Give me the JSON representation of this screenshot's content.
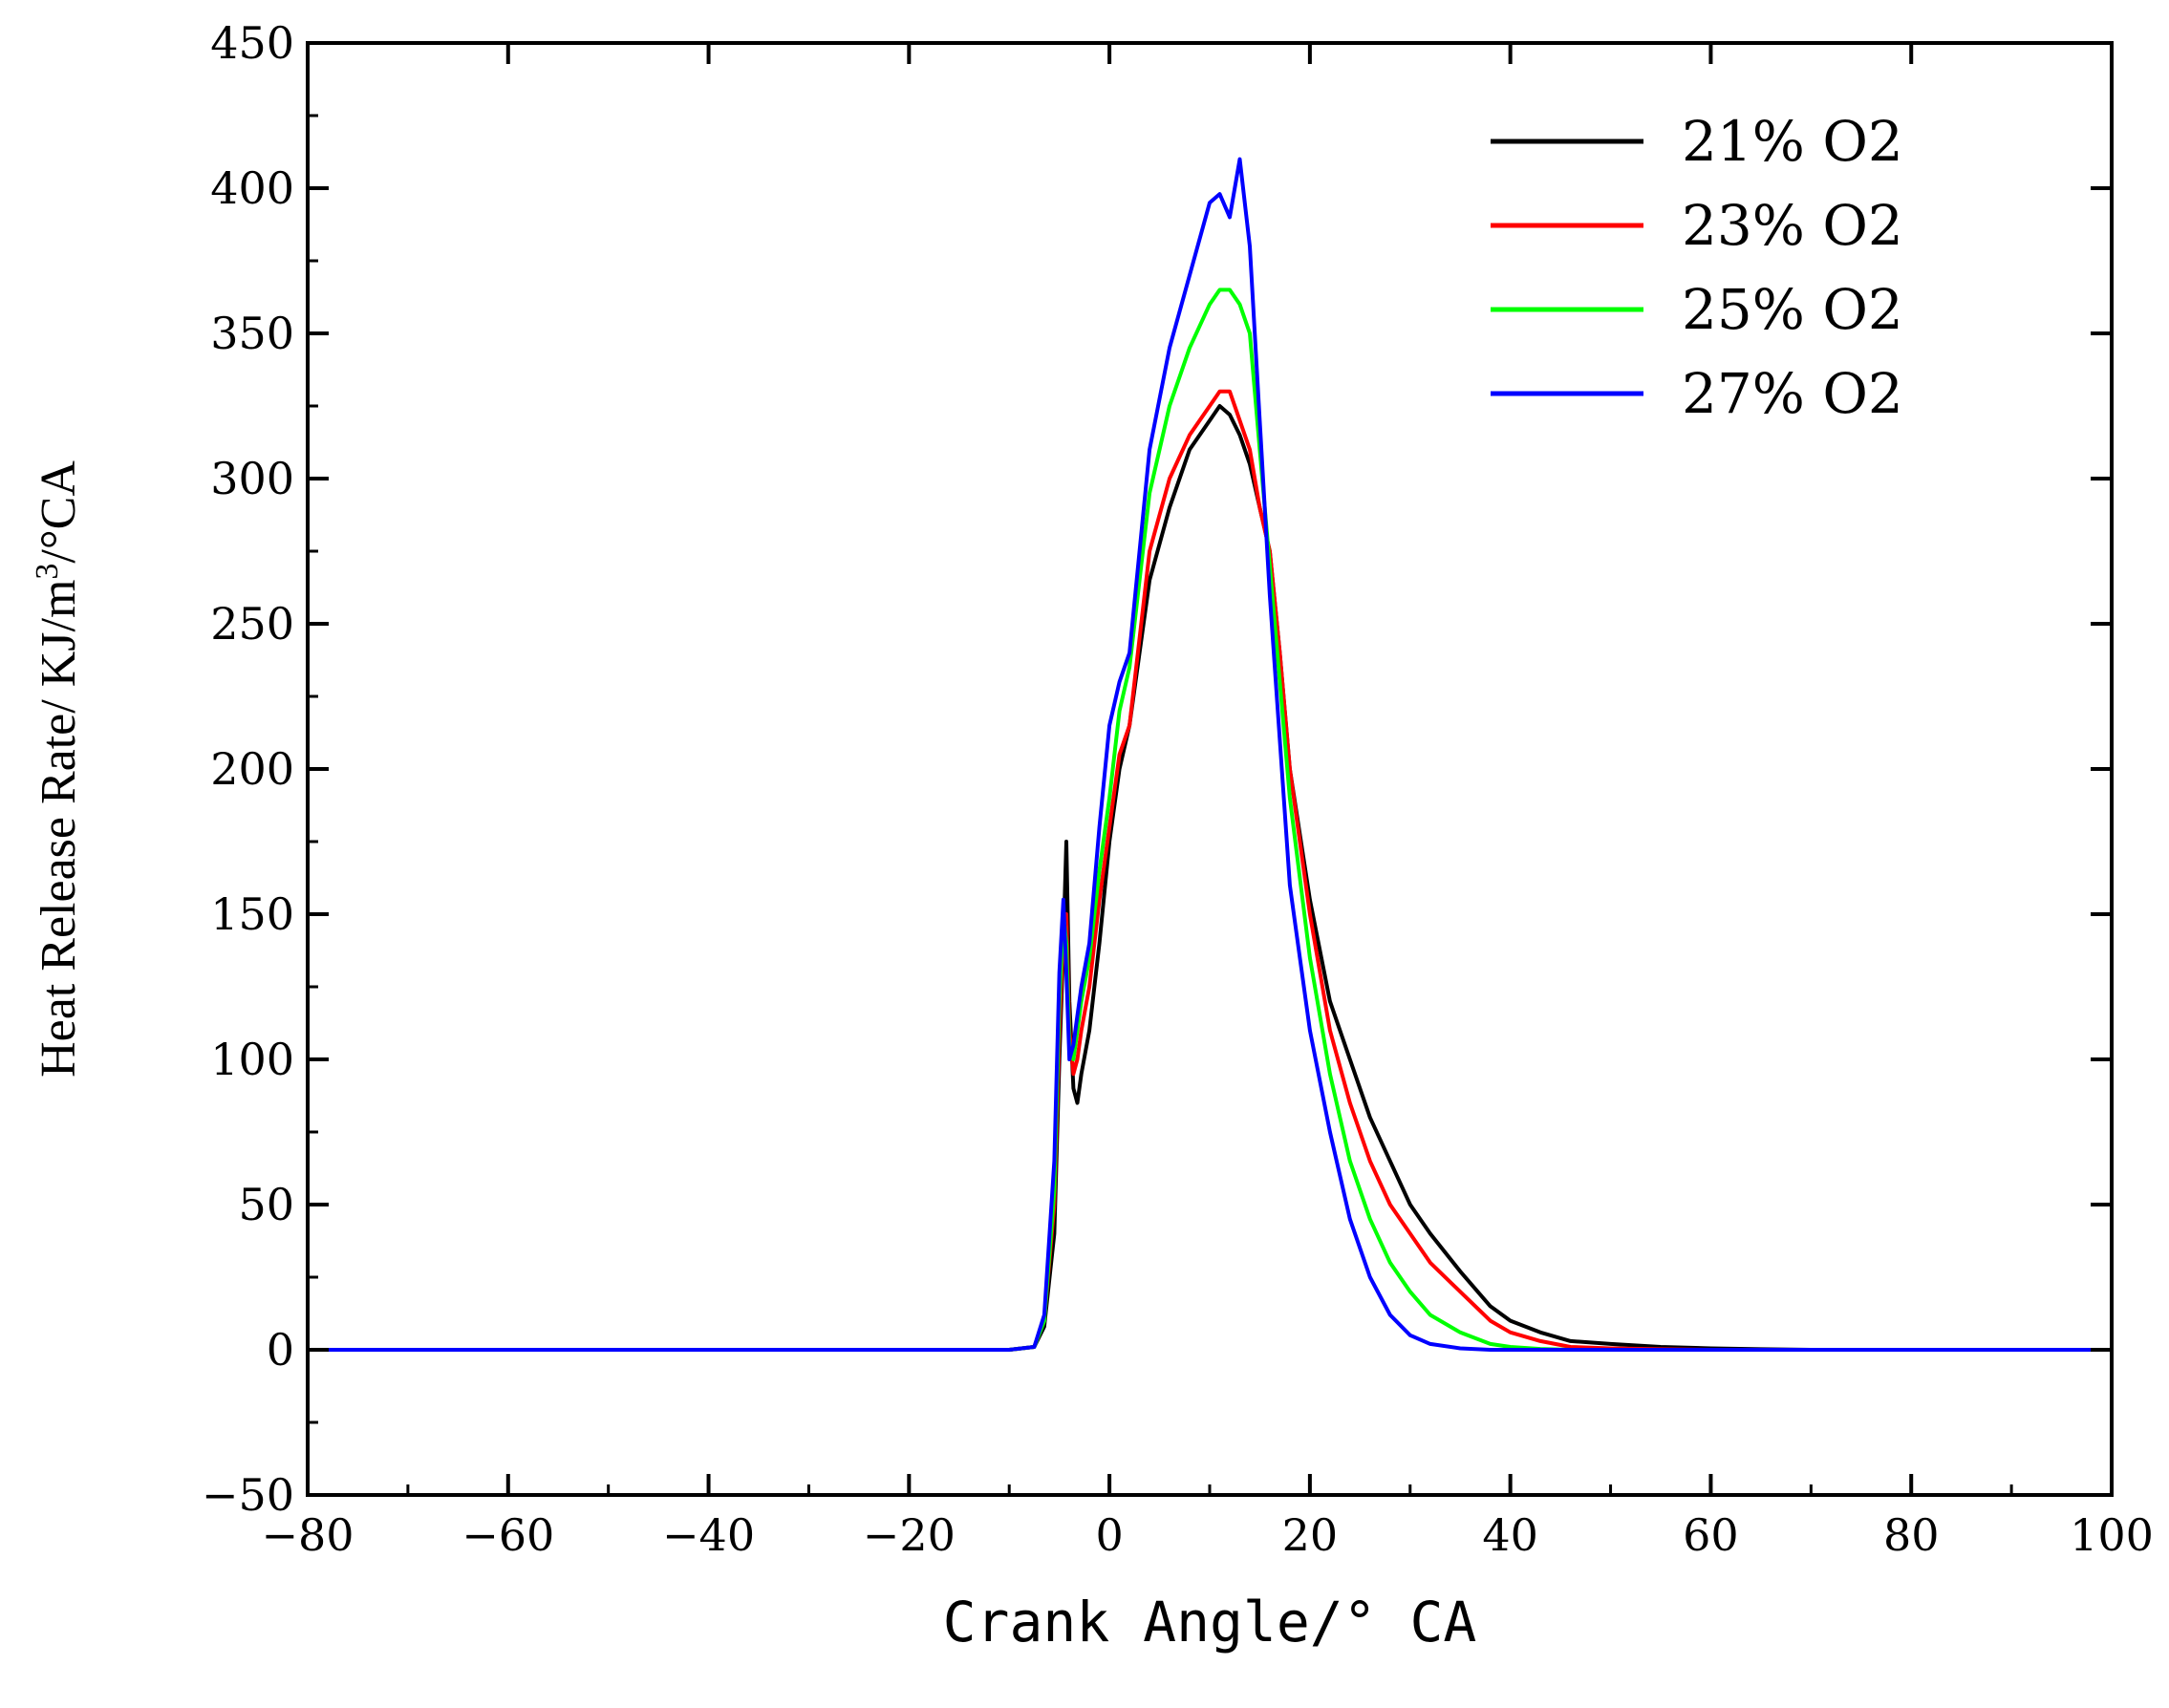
{
  "chart_data": {
    "type": "line",
    "title": "",
    "xlabel": "Crank Angle/° CA",
    "ylabel_main": "Heat Release Rate/ KJ/m",
    "ylabel_sup": "3",
    "ylabel_tail": "/°CA",
    "xlim": [
      -80,
      100
    ],
    "ylim": [
      -50,
      450
    ],
    "xticks": [
      -80,
      -60,
      -40,
      -20,
      0,
      20,
      40,
      60,
      80,
      100
    ],
    "xtick_labels": [
      "−80",
      "−60",
      "−40",
      "−20",
      "0",
      "20",
      "40",
      "60",
      "80",
      "100"
    ],
    "yticks": [
      -50,
      0,
      50,
      100,
      150,
      200,
      250,
      300,
      350,
      400,
      450
    ],
    "ytick_labels": [
      "−50",
      "0",
      "50",
      "100",
      "150",
      "200",
      "250",
      "300",
      "350",
      "400",
      "450"
    ],
    "grid": false,
    "legend_position": "top-right",
    "series": [
      {
        "name": "21% O2",
        "color": "#000000",
        "x": [
          -78,
          -10,
          -7.5,
          -6.5,
          -5.5,
          -5,
          -4.6,
          -4.3,
          -4.0,
          -3.6,
          -3.2,
          -2.8,
          -2,
          -1,
          0,
          1,
          2,
          3,
          4,
          6,
          8,
          10,
          11,
          12,
          13,
          14,
          15,
          16,
          17,
          18,
          20,
          22,
          24,
          26,
          28,
          30,
          32,
          35,
          38,
          40,
          43,
          46,
          50,
          55,
          60,
          65,
          70,
          80,
          100
        ],
        "y": [
          0,
          0,
          1,
          8,
          40,
          100,
          140,
          175,
          120,
          90,
          85,
          95,
          110,
          140,
          175,
          200,
          215,
          240,
          265,
          290,
          310,
          320,
          325,
          322,
          315,
          305,
          290,
          275,
          240,
          200,
          155,
          120,
          100,
          80,
          65,
          50,
          40,
          27,
          15,
          10,
          6,
          3,
          2,
          1,
          0.5,
          0.2,
          0,
          0,
          0
        ]
      },
      {
        "name": "23% O2",
        "color": "#ff0000",
        "x": [
          -78,
          -10,
          -7.5,
          -6.5,
          -5.5,
          -5,
          -4.6,
          -4.3,
          -4.0,
          -3.6,
          -3.2,
          -2.8,
          -2,
          -1,
          0,
          1,
          2,
          3,
          4,
          6,
          8,
          10,
          11,
          12,
          13,
          14,
          15,
          16,
          17,
          18,
          20,
          22,
          24,
          26,
          28,
          30,
          32,
          35,
          38,
          40,
          43,
          46,
          50,
          55,
          60,
          65,
          70,
          80,
          100
        ],
        "y": [
          0,
          0,
          1,
          10,
          50,
          110,
          145,
          150,
          110,
          95,
          100,
          110,
          125,
          155,
          180,
          205,
          215,
          245,
          275,
          300,
          315,
          325,
          330,
          330,
          320,
          310,
          290,
          275,
          240,
          200,
          150,
          110,
          85,
          65,
          50,
          40,
          30,
          20,
          10,
          6,
          3,
          1,
          0.5,
          0.2,
          0,
          0,
          0,
          0,
          0
        ]
      },
      {
        "name": "25% O2",
        "color": "#00ff00",
        "x": [
          -78,
          -10,
          -7.5,
          -6.5,
          -5.5,
          -5,
          -4.6,
          -4.3,
          -4.0,
          -3.6,
          -3.2,
          -2.8,
          -2,
          -1,
          0,
          1,
          2,
          3,
          4,
          6,
          8,
          10,
          11,
          12,
          13,
          14,
          15,
          16,
          17,
          18,
          20,
          22,
          24,
          26,
          28,
          30,
          32,
          35,
          38,
          40,
          43,
          46,
          50,
          55,
          60,
          65,
          70,
          80,
          100
        ],
        "y": [
          0,
          0,
          1,
          10,
          55,
          120,
          150,
          140,
          105,
          100,
          110,
          120,
          135,
          165,
          190,
          220,
          235,
          265,
          295,
          325,
          345,
          360,
          365,
          365,
          360,
          350,
          310,
          270,
          230,
          190,
          135,
          95,
          65,
          45,
          30,
          20,
          12,
          6,
          2,
          1,
          0.3,
          0,
          0,
          0,
          0,
          0,
          0,
          0,
          0
        ]
      },
      {
        "name": "27% O2",
        "color": "#0000ff",
        "x": [
          -78,
          -10,
          -7.5,
          -6.5,
          -5.5,
          -5,
          -4.6,
          -4.3,
          -4.0,
          -3.6,
          -3.2,
          -2.8,
          -2,
          -1,
          0,
          1,
          2,
          3,
          4,
          6,
          8,
          10,
          11,
          12,
          13,
          14,
          15,
          16,
          17,
          18,
          20,
          22,
          24,
          26,
          28,
          30,
          32,
          35,
          38,
          40,
          43,
          46,
          50,
          55,
          60,
          65,
          70,
          80,
          100
        ],
        "y": [
          0,
          0,
          1,
          12,
          65,
          130,
          155,
          130,
          100,
          105,
          115,
          125,
          140,
          180,
          215,
          230,
          240,
          275,
          310,
          345,
          370,
          395,
          398,
          390,
          410,
          380,
          320,
          260,
          210,
          160,
          110,
          75,
          45,
          25,
          12,
          5,
          2,
          0.5,
          0,
          0,
          0,
          0,
          0,
          0,
          0,
          0,
          0,
          0,
          0
        ]
      }
    ]
  }
}
